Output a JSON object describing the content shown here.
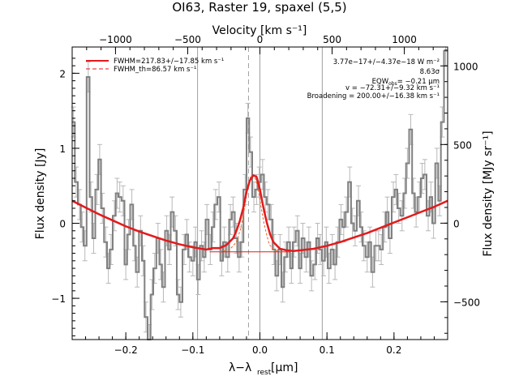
{
  "chart_data": {
    "type": "line",
    "title": "OI63, Raster 19, spaxel (5,5)",
    "xlabel": "λ−λ",
    "xlabel_sub": "rest",
    "xlabel_unit": "[μm]",
    "ylabel": "Flux density [Jy]",
    "ylabel_right": "Flux density [MJy sr⁻¹]",
    "xlabel_top": "Velocity [km s⁻¹]",
    "xlim": [
      -0.28,
      0.28
    ],
    "ylim": [
      -1.55,
      2.35
    ],
    "ylim_right": [
      -740,
      1120
    ],
    "xlim_top": [
      -1300,
      1300
    ],
    "x_ticks": [
      -0.2,
      -0.1,
      0.0,
      0.1,
      0.2
    ],
    "x_tick_labels": [
      "−0.2",
      "−0.1",
      "0.0",
      "0.1",
      "0.2"
    ],
    "y_ticks": [
      -1,
      0,
      1,
      2
    ],
    "y_tick_labels": [
      "−1",
      "0",
      "1",
      "2"
    ],
    "y_right_ticks": [
      -500,
      0,
      500,
      1000
    ],
    "y_right_tick_labels": [
      "−500",
      "0",
      "500",
      "1000"
    ],
    "top_ticks": [
      -1000,
      -500,
      0,
      500,
      1000
    ],
    "top_tick_labels": [
      "−1000",
      "−500",
      "0",
      "500",
      "1000"
    ],
    "vlines_solid": [
      -0.093,
      0.0,
      0.093
    ],
    "vline_dashed": -0.017,
    "legend": [
      {
        "label": "FWHM=217.83+/−17.85 km s⁻¹",
        "style": "solid",
        "color": "#e31a1c"
      },
      {
        "label": "FWHM_th=86.57 km s⁻¹",
        "style": "dashed",
        "color": "#e31a1c"
      }
    ],
    "annotations": [
      "3.77e−17+/−4.37e−18 W m⁻²",
      "8.63σ",
      "EQW",
      "obs",
      "= −0.21 μm",
      "v = −72.31+/−9.32 km s⁻¹",
      "Broadening = 200.00+/−16.38 km s⁻¹"
    ],
    "colors": {
      "data": "#808080",
      "fit": "#e31a1c",
      "component": "#f26522",
      "vline": "#a0a0a0"
    },
    "series": [
      {
        "name": "data",
        "x": [
          -0.278,
          -0.274,
          -0.269,
          -0.265,
          -0.261,
          -0.256,
          -0.252,
          -0.248,
          -0.243,
          -0.239,
          -0.235,
          -0.23,
          -0.226,
          -0.222,
          -0.217,
          -0.213,
          -0.209,
          -0.204,
          -0.2,
          -0.196,
          -0.191,
          -0.187,
          -0.183,
          -0.178,
          -0.174,
          -0.17,
          -0.165,
          -0.161,
          -0.157,
          -0.152,
          -0.148,
          -0.144,
          -0.139,
          -0.135,
          -0.131,
          -0.126,
          -0.122,
          -0.118,
          -0.113,
          -0.109,
          -0.105,
          -0.1,
          -0.096,
          -0.092,
          -0.087,
          -0.083,
          -0.079,
          -0.074,
          -0.07,
          -0.066,
          -0.061,
          -0.057,
          -0.053,
          -0.048,
          -0.044,
          -0.04,
          -0.035,
          -0.031,
          -0.027,
          -0.022,
          -0.018,
          -0.014,
          -0.009,
          -0.005,
          -0.001,
          0.004,
          0.008,
          0.012,
          0.017,
          0.021,
          0.025,
          0.03,
          0.034,
          0.038,
          0.043,
          0.047,
          0.051,
          0.056,
          0.06,
          0.064,
          0.069,
          0.073,
          0.077,
          0.082,
          0.086,
          0.09,
          0.095,
          0.099,
          0.103,
          0.108,
          0.112,
          0.116,
          0.121,
          0.125,
          0.129,
          0.134,
          0.138,
          0.142,
          0.147,
          0.151,
          0.155,
          0.16,
          0.164,
          0.168,
          0.173,
          0.177,
          0.181,
          0.186,
          0.19,
          0.194,
          0.199,
          0.203,
          0.207,
          0.212,
          0.216,
          0.22,
          0.225,
          0.229,
          0.233,
          0.238,
          0.242,
          0.246,
          0.251,
          0.255,
          0.259,
          0.264,
          0.268,
          0.272,
          0.277
        ],
        "y": [
          1.35,
          0.55,
          0.25,
          -0.05,
          -0.3,
          1.95,
          0.35,
          -0.2,
          0.45,
          0.85,
          0.2,
          -0.25,
          -0.6,
          -0.35,
          0.1,
          0.4,
          0.35,
          0.3,
          -0.55,
          -0.15,
          0.25,
          -0.3,
          -0.65,
          -0.1,
          -0.5,
          -1.25,
          -1.55,
          -0.95,
          -0.6,
          -0.2,
          -0.55,
          -0.85,
          -0.1,
          -0.35,
          0.15,
          -0.1,
          -0.95,
          -1.05,
          -0.35,
          -0.15,
          -0.45,
          -0.5,
          -0.25,
          -0.75,
          -0.3,
          -0.45,
          0.05,
          -0.35,
          -0.05,
          0.25,
          0.35,
          -0.5,
          -0.25,
          -0.45,
          0.05,
          0.15,
          -0.2,
          -0.45,
          -0.25,
          0.45,
          1.4,
          0.95,
          0.35,
          0.45,
          0.55,
          0.65,
          0.35,
          0.25,
          0.05,
          -0.35,
          -0.7,
          -0.35,
          -0.85,
          -0.45,
          -0.25,
          -0.6,
          -0.25,
          -0.1,
          -0.6,
          -0.2,
          -0.45,
          -0.25,
          -0.7,
          -0.55,
          -0.2,
          -0.35,
          -0.5,
          -0.25,
          -0.6,
          -0.35,
          -0.55,
          -0.25,
          0.05,
          -0.05,
          0.15,
          0.55,
          0.0,
          -0.1,
          0.3,
          -0.05,
          -0.3,
          -0.45,
          -0.25,
          -0.65,
          -0.3,
          -0.3,
          -0.35,
          -0.05,
          0.15,
          -0.2,
          0.35,
          0.45,
          0.2,
          0.1,
          0.4,
          0.8,
          1.25,
          0.4,
          0.15,
          0.35,
          0.6,
          0.65,
          0.1,
          0.35,
          0.0,
          0.8,
          0.3,
          1.35,
          2.3
        ],
        "errors": [
          0.2,
          0.2,
          0.2,
          0.2,
          0.2,
          0.2,
          0.2,
          0.2,
          0.2,
          0.2,
          0.2,
          0.2,
          0.2,
          0.2,
          0.2,
          0.2,
          0.2,
          0.2,
          0.2,
          0.2,
          0.2,
          0.2,
          0.2,
          0.2,
          0.2,
          0.2,
          0.2,
          0.2,
          0.2,
          0.2,
          0.2,
          0.2,
          0.2,
          0.2,
          0.2,
          0.2,
          0.2,
          0.2,
          0.2,
          0.2,
          0.2,
          0.2,
          0.2,
          0.2,
          0.2,
          0.2,
          0.2,
          0.2,
          0.2,
          0.2,
          0.2,
          0.2,
          0.2,
          0.2,
          0.2,
          0.2,
          0.2,
          0.2,
          0.2,
          0.2,
          0.2,
          0.2,
          0.2,
          0.2,
          0.2,
          0.2,
          0.2,
          0.2,
          0.2,
          0.2,
          0.2,
          0.2,
          0.2,
          0.2,
          0.2,
          0.2,
          0.2,
          0.2,
          0.2,
          0.2,
          0.2,
          0.2,
          0.2,
          0.2,
          0.2,
          0.2,
          0.2,
          0.2,
          0.2,
          0.2,
          0.2,
          0.2,
          0.2,
          0.2,
          0.2,
          0.2,
          0.2,
          0.2,
          0.2,
          0.2,
          0.2,
          0.2,
          0.2,
          0.2,
          0.2,
          0.2,
          0.2,
          0.2,
          0.2,
          0.2,
          0.2,
          0.2,
          0.2,
          0.2,
          0.2,
          0.2,
          0.2,
          0.2,
          0.2,
          0.2,
          0.2,
          0.2,
          0.2,
          0.2,
          0.2,
          0.2,
          0.2,
          0.2,
          0.2
        ]
      },
      {
        "name": "fit",
        "x": [
          -0.28,
          -0.26,
          -0.24,
          -0.22,
          -0.2,
          -0.18,
          -0.16,
          -0.14,
          -0.12,
          -0.1,
          -0.08,
          -0.07,
          -0.06,
          -0.05,
          -0.04,
          -0.035,
          -0.03,
          -0.025,
          -0.02,
          -0.015,
          -0.01,
          -0.005,
          0.0,
          0.005,
          0.01,
          0.015,
          0.02,
          0.03,
          0.04,
          0.05,
          0.06,
          0.08,
          0.1,
          0.12,
          0.14,
          0.16,
          0.18,
          0.2,
          0.22,
          0.24,
          0.26,
          0.28
        ],
        "y": [
          0.3,
          0.21,
          0.12,
          0.04,
          -0.04,
          -0.11,
          -0.17,
          -0.23,
          -0.28,
          -0.32,
          -0.35,
          -0.33,
          -0.33,
          -0.29,
          -0.2,
          -0.1,
          0.03,
          0.2,
          0.42,
          0.57,
          0.64,
          0.62,
          0.45,
          0.22,
          0.02,
          -0.14,
          -0.25,
          -0.34,
          -0.36,
          -0.37,
          -0.36,
          -0.34,
          -0.3,
          -0.25,
          -0.19,
          -0.13,
          -0.06,
          0.01,
          0.08,
          0.15,
          0.22,
          0.3
        ]
      },
      {
        "name": "component",
        "x": [
          -0.06,
          -0.045,
          -0.035,
          -0.028,
          -0.022,
          -0.018,
          -0.014,
          -0.01,
          -0.006,
          -0.002,
          0.002,
          0.006,
          0.01,
          0.014,
          0.02,
          0.03,
          0.045
        ],
        "y": [
          -0.38,
          -0.35,
          -0.25,
          -0.05,
          0.25,
          0.48,
          0.62,
          0.64,
          0.58,
          0.42,
          0.2,
          0.0,
          -0.15,
          -0.28,
          -0.35,
          -0.38,
          -0.38
        ]
      },
      {
        "name": "baseline",
        "x": [
          -0.075,
          0.045
        ],
        "y": [
          -0.38,
          -0.38
        ]
      }
    ]
  }
}
